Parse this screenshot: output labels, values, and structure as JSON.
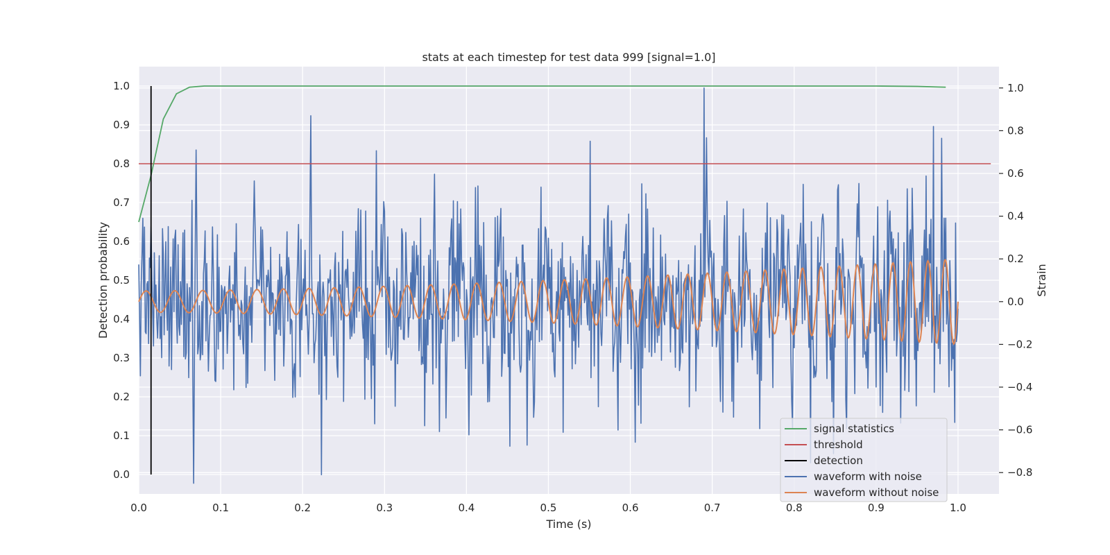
{
  "chart_data": {
    "type": "line",
    "title": "stats at each timestep for test data 999 [signal=1.0]",
    "xlabel": "Time (s)",
    "ylabel": "Detection probability",
    "ylabel_right": "Strain",
    "xlim": [
      0.0,
      1.05
    ],
    "ylim": [
      -0.05,
      1.05
    ],
    "ylim_right": [
      -0.9,
      1.1
    ],
    "x_ticks": [
      "0.0",
      "0.1",
      "0.2",
      "0.3",
      "0.4",
      "0.5",
      "0.6",
      "0.7",
      "0.8",
      "0.9",
      "1.0"
    ],
    "x_tick_values": [
      0.0,
      0.1,
      0.2,
      0.3,
      0.4,
      0.5,
      0.6,
      0.7,
      0.8,
      0.9,
      1.0
    ],
    "y_ticks": [
      "0.0",
      "0.1",
      "0.2",
      "0.3",
      "0.4",
      "0.5",
      "0.6",
      "0.7",
      "0.8",
      "0.9",
      "1.0"
    ],
    "y_tick_values": [
      0.0,
      0.1,
      0.2,
      0.3,
      0.4,
      0.5,
      0.6,
      0.7,
      0.8,
      0.9,
      1.0
    ],
    "y_right_ticks": [
      "−0.8",
      "−0.6",
      "−0.4",
      "−0.2",
      "0.0",
      "0.2",
      "0.4",
      "0.6",
      "0.8",
      "1.0"
    ],
    "y_right_tick_values": [
      -0.8,
      -0.6,
      -0.4,
      -0.2,
      0.0,
      0.2,
      0.4,
      0.6,
      0.8,
      1.0
    ],
    "grid": true,
    "legend_position": "bottom-right",
    "colors": {
      "signal": "#55a868",
      "threshold": "#c44e52",
      "detection": "#000000",
      "noisy": "#4c72b0",
      "clean": "#dd8452",
      "plot_bg": "#eaeaf2",
      "grid": "#ffffff"
    },
    "signal_statistics": {
      "name": "signal statistics",
      "x": [
        0.0,
        0.015,
        0.03,
        0.046,
        0.062,
        0.08,
        0.1,
        0.2,
        0.3,
        0.4,
        0.5,
        0.6,
        0.7,
        0.8,
        0.9,
        0.95,
        0.985
      ],
      "y": [
        0.65,
        0.77,
        0.915,
        0.98,
        0.997,
        1.0,
        1.0,
        1.0,
        1.0,
        1.0,
        1.0,
        1.0,
        1.0,
        1.0,
        1.0,
        0.999,
        0.997
      ]
    },
    "threshold": {
      "name": "threshold",
      "y": 0.8,
      "x": [
        0.0,
        1.04
      ]
    },
    "detection": {
      "name": "detection",
      "x": 0.015,
      "y": [
        0.0,
        1.0
      ]
    },
    "waveform_with_noise": {
      "name": "waveform with noise",
      "x_range": [
        0.0,
        1.0
      ],
      "samples": 1000,
      "noise_std": 0.23,
      "features": [
        {
          "x": 0.067,
          "y": -0.85
        },
        {
          "x": 0.07,
          "y": 0.71
        },
        {
          "x": 0.21,
          "y": 0.87
        },
        {
          "x": 0.223,
          "y": -0.81
        },
        {
          "x": 0.69,
          "y": 1.0
        },
        {
          "x": 0.97,
          "y": 0.82
        }
      ]
    },
    "waveform_without_noise": {
      "name": "waveform without noise",
      "x_range": [
        0.0,
        1.0
      ],
      "amplitude_start": 0.05,
      "amplitude_end": 0.2,
      "freq_start": 28,
      "freq_end": 48
    },
    "legend": {
      "entries": [
        "signal statistics",
        "threshold",
        "detection",
        "waveform with noise",
        "waveform without noise"
      ]
    }
  }
}
